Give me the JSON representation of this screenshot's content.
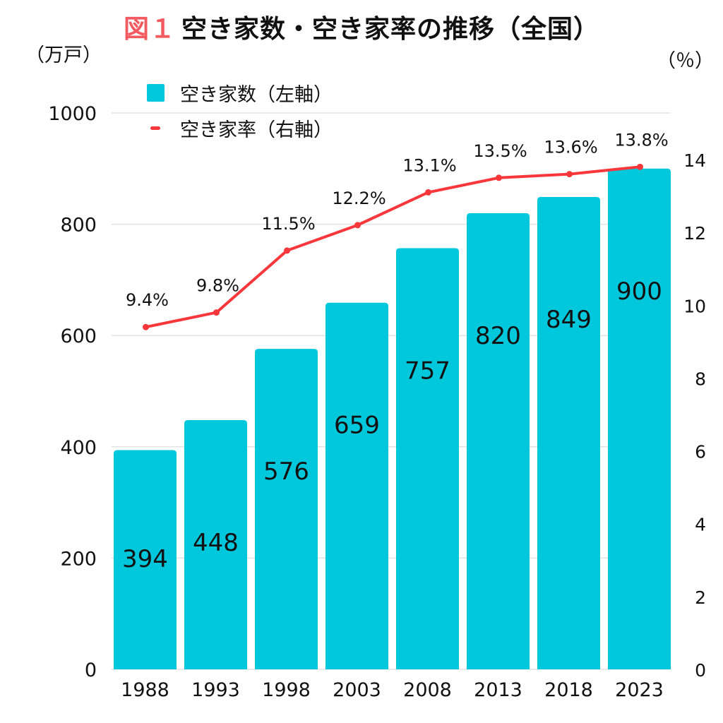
{
  "title": {
    "figure_label": "図１",
    "text": "空き家数・空き家率の推移（全国）"
  },
  "colors": {
    "bar": "#00c8dc",
    "line": "#f7373c",
    "figure_label": "#f25a5f",
    "grid": "#e3e3e3"
  },
  "chart_data": {
    "type": "bar+line",
    "title": "図１ 空き家数・空き家率の推移（全国）",
    "categories": [
      "1988",
      "1993",
      "1998",
      "2003",
      "2008",
      "2013",
      "2018",
      "2023"
    ],
    "series": [
      {
        "name": "空き家数（左軸）",
        "type": "bar",
        "axis": "left",
        "values": [
          394,
          448,
          576,
          659,
          757,
          820,
          849,
          900
        ],
        "labels": [
          "394",
          "448",
          "576",
          "659",
          "757",
          "820",
          "849",
          "900"
        ]
      },
      {
        "name": "空き家率（右軸）",
        "type": "line",
        "axis": "right",
        "values": [
          9.4,
          9.8,
          11.5,
          12.2,
          13.1,
          13.5,
          13.6,
          13.8
        ],
        "labels": [
          "9.4%",
          "9.8%",
          "11.5%",
          "12.2%",
          "13.1%",
          "13.5%",
          "13.6%",
          "13.8%"
        ]
      }
    ],
    "left_axis": {
      "unit_label": "（万戸）",
      "range": [
        0,
        1000
      ],
      "ticks": [
        0,
        200,
        400,
        600,
        800,
        1000
      ],
      "tick_labels": [
        "0",
        "200",
        "400",
        "600",
        "800",
        "1000"
      ]
    },
    "right_axis": {
      "unit_label": "（％）",
      "range": [
        0,
        14
      ],
      "ticks": [
        0,
        2,
        4,
        6,
        8,
        10,
        12,
        14
      ],
      "tick_labels": [
        "0",
        "2",
        "4",
        "6",
        "8",
        "10",
        "12",
        "14"
      ]
    },
    "grid": true,
    "legend": {
      "placement": "top-left",
      "entries": [
        "空き家数（左軸）",
        "空き家率（右軸）"
      ]
    }
  }
}
